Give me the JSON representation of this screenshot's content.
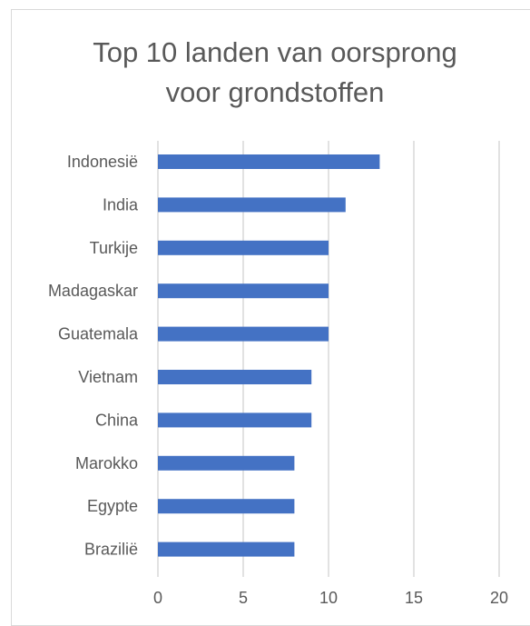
{
  "chart_data": {
    "type": "bar",
    "orientation": "horizontal",
    "title": "Top 10 landen van oorsprong voor grondstoffen",
    "title_lines": [
      "Top 10 landen van oorsprong",
      "voor grondstoffen"
    ],
    "categories": [
      "Indonesië",
      "India",
      "Turkije",
      "Madagaskar",
      "Guatemala",
      "Vietnam",
      "China",
      "Marokko",
      "Egypte",
      "Brazilië"
    ],
    "values": [
      13,
      11,
      10,
      10,
      10,
      9,
      9,
      8,
      8,
      8
    ],
    "xlim": [
      0,
      20
    ],
    "xticks": [
      0,
      5,
      10,
      15,
      20
    ],
    "xtick_labels": [
      "0",
      "5",
      "10",
      "15",
      "20"
    ],
    "grid": true,
    "legend": "none",
    "bar_color": "#4472C4",
    "grid_color": "#D9D9D9",
    "text_color": "#595959"
  }
}
